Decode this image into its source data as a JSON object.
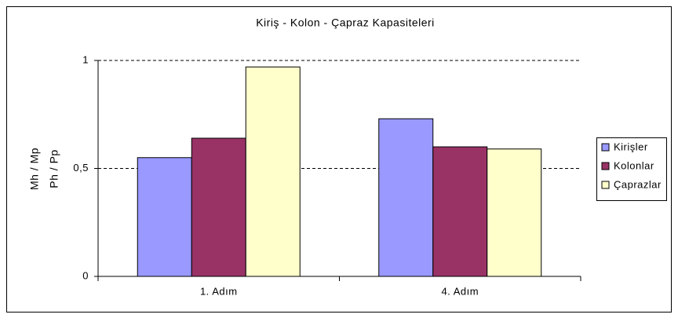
{
  "chart_data": {
    "type": "bar",
    "title": "Kiriş - Kolon - Çapraz Kapasiteleri",
    "y_label": [
      "Mh / Mp",
      "Ph / Pp"
    ],
    "categories": [
      "1. Adım",
      "4. Adım"
    ],
    "series": [
      {
        "name": "Kirişler",
        "color": "#9999ff",
        "values": [
          0.55,
          0.73
        ]
      },
      {
        "name": "Kolonlar",
        "color": "#993366",
        "values": [
          0.64,
          0.6
        ]
      },
      {
        "name": "Çaprazlar",
        "color": "#ffffcc",
        "values": [
          0.97,
          0.59
        ]
      }
    ],
    "ylim": [
      0,
      1
    ],
    "yticks": [
      0,
      {
        "value": 0.5,
        "label": "0,5"
      },
      1
    ],
    "grid": true,
    "legend": "right"
  }
}
